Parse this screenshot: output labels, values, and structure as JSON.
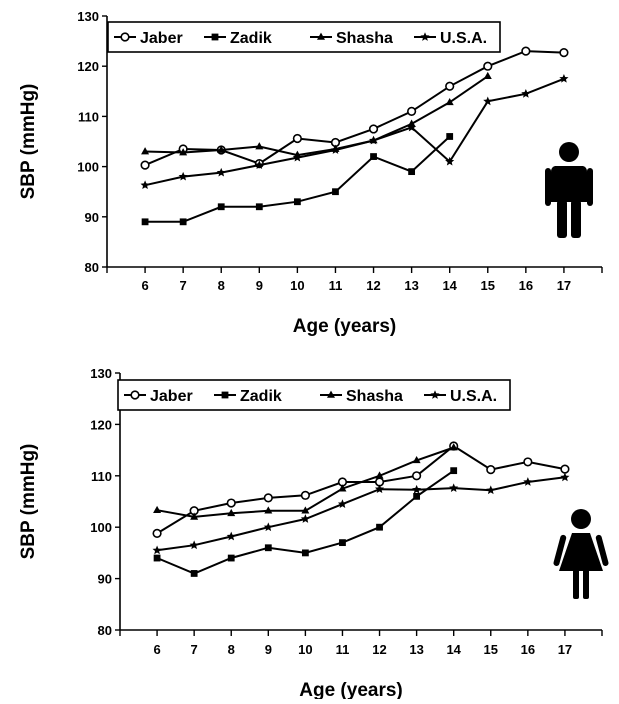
{
  "chart_data": [
    {
      "type": "line",
      "xlabel": "Age (years)",
      "ylabel": "SBP (mmHg)",
      "xlim": [
        5,
        18
      ],
      "ylim": [
        80,
        130
      ],
      "x_ticks": [
        6,
        7,
        8,
        9,
        10,
        11,
        12,
        13,
        14,
        15,
        16,
        17
      ],
      "y_ticks": [
        80,
        90,
        100,
        110,
        120,
        130
      ],
      "legend_position": "top-left",
      "grid": false,
      "icon": "male-figure-icon",
      "series": [
        {
          "name": "Jaber",
          "marker": "open-circle",
          "points": [
            [
              6,
              100.3
            ],
            [
              7,
              103.5
            ],
            [
              8,
              103.3
            ],
            [
              9,
              100.6
            ],
            [
              10,
              105.6
            ],
            [
              11,
              104.8
            ],
            [
              12,
              107.5
            ],
            [
              13,
              111.0
            ],
            [
              14,
              116.0
            ],
            [
              15,
              120.0
            ],
            [
              16,
              123.0
            ],
            [
              17,
              122.7
            ]
          ]
        },
        {
          "name": "Zadik",
          "marker": "filled-square",
          "points": [
            [
              6,
              89.0
            ],
            [
              7,
              89.0
            ],
            [
              8,
              92.0
            ],
            [
              9,
              92.0
            ],
            [
              10,
              93.0
            ],
            [
              11,
              95.0
            ],
            [
              12,
              102.0
            ],
            [
              13,
              99.0
            ],
            [
              14,
              106.0
            ]
          ]
        },
        {
          "name": "Shasha",
          "marker": "filled-triangle",
          "points": [
            [
              6,
              103.0
            ],
            [
              7,
              102.8
            ],
            [
              8,
              103.3
            ],
            [
              9,
              104.0
            ],
            [
              10,
              102.3
            ],
            [
              11,
              103.5
            ],
            [
              12,
              105.2
            ],
            [
              13,
              108.5
            ],
            [
              14,
              112.8
            ],
            [
              15,
              118.0
            ]
          ]
        },
        {
          "name": "U.S.A.",
          "marker": "star",
          "points": [
            [
              6,
              96.3
            ],
            [
              7,
              98.0
            ],
            [
              8,
              98.8
            ],
            [
              9,
              100.3
            ],
            [
              10,
              101.8
            ],
            [
              11,
              103.3
            ],
            [
              12,
              105.2
            ],
            [
              13,
              107.8
            ],
            [
              14,
              101.0
            ],
            [
              15,
              113.0
            ],
            [
              16,
              114.5
            ],
            [
              17,
              117.5
            ]
          ]
        }
      ]
    },
    {
      "type": "line",
      "xlabel": "Age (years)",
      "ylabel": "SBP (mmHg)",
      "xlim": [
        5,
        18
      ],
      "ylim": [
        80,
        130
      ],
      "x_ticks": [
        6,
        7,
        8,
        9,
        10,
        11,
        12,
        13,
        14,
        15,
        16,
        17
      ],
      "y_ticks": [
        80,
        90,
        100,
        110,
        120,
        130
      ],
      "legend_position": "top-left",
      "grid": false,
      "icon": "female-figure-icon",
      "series": [
        {
          "name": "Jaber",
          "marker": "open-circle",
          "points": [
            [
              6,
              98.8
            ],
            [
              7,
              103.2
            ],
            [
              8,
              104.7
            ],
            [
              9,
              105.7
            ],
            [
              10,
              106.2
            ],
            [
              11,
              108.8
            ],
            [
              12,
              108.8
            ],
            [
              13,
              110.0
            ],
            [
              14,
              115.8
            ],
            [
              15,
              111.2
            ],
            [
              16,
              112.7
            ],
            [
              17,
              111.3
            ]
          ]
        },
        {
          "name": "Zadik",
          "marker": "filled-square",
          "points": [
            [
              6,
              94.0
            ],
            [
              7,
              91.0
            ],
            [
              8,
              94.0
            ],
            [
              9,
              96.0
            ],
            [
              10,
              95.0
            ],
            [
              11,
              97.0
            ],
            [
              12,
              100.0
            ],
            [
              13,
              106.0
            ],
            [
              14,
              111.0
            ]
          ]
        },
        {
          "name": "Shasha",
          "marker": "filled-triangle",
          "points": [
            [
              6,
              103.3
            ],
            [
              7,
              102.0
            ],
            [
              8,
              102.7
            ],
            [
              9,
              103.2
            ],
            [
              10,
              103.2
            ],
            [
              11,
              107.5
            ],
            [
              12,
              110.0
            ],
            [
              13,
              113.0
            ],
            [
              14,
              115.5
            ]
          ]
        },
        {
          "name": "U.S.A.",
          "marker": "star",
          "points": [
            [
              6,
              95.5
            ],
            [
              7,
              96.5
            ],
            [
              8,
              98.2
            ],
            [
              9,
              100.0
            ],
            [
              10,
              101.6
            ],
            [
              11,
              104.5
            ],
            [
              12,
              107.4
            ],
            [
              13,
              107.3
            ],
            [
              14,
              107.6
            ],
            [
              15,
              107.2
            ],
            [
              16,
              108.8
            ],
            [
              17,
              109.7
            ]
          ]
        }
      ]
    }
  ]
}
